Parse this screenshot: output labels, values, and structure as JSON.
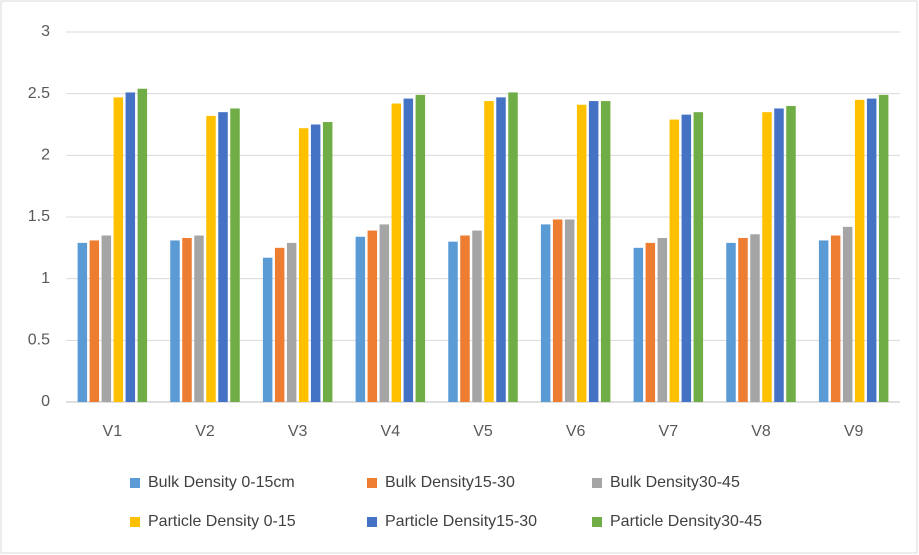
{
  "chart_data": {
    "type": "bar",
    "categories": [
      "V1",
      "V2",
      "V3",
      "V4",
      "V5",
      "V6",
      "V7",
      "V8",
      "V9"
    ],
    "series": [
      {
        "name": "Bulk Density 0-15cm",
        "color": "#5b9bd5",
        "values": [
          1.29,
          1.31,
          1.17,
          1.34,
          1.3,
          1.44,
          1.25,
          1.29,
          1.31
        ]
      },
      {
        "name": "Bulk Density15-30",
        "color": "#ed7d31",
        "values": [
          1.31,
          1.33,
          1.25,
          1.39,
          1.35,
          1.48,
          1.29,
          1.33,
          1.35
        ]
      },
      {
        "name": "Bulk Density30-45",
        "color": "#a5a5a5",
        "values": [
          1.35,
          1.35,
          1.29,
          1.44,
          1.39,
          1.48,
          1.33,
          1.36,
          1.42
        ]
      },
      {
        "name": "Particle Density 0-15",
        "color": "#ffc000",
        "values": [
          2.47,
          2.32,
          2.22,
          2.42,
          2.44,
          2.41,
          2.29,
          2.35,
          2.45
        ]
      },
      {
        "name": "Particle Density15-30",
        "color": "#4472c4",
        "values": [
          2.51,
          2.35,
          2.25,
          2.46,
          2.47,
          2.44,
          2.33,
          2.38,
          2.46
        ]
      },
      {
        "name": "Particle Density30-45",
        "color": "#70ad47",
        "values": [
          2.54,
          2.38,
          2.27,
          2.49,
          2.51,
          2.44,
          2.35,
          2.4,
          2.49
        ]
      }
    ],
    "ylim": [
      0,
      3
    ],
    "yticks": [
      0,
      0.5,
      1,
      1.5,
      2,
      2.5,
      3
    ],
    "grid": true,
    "legend": "bottom"
  }
}
